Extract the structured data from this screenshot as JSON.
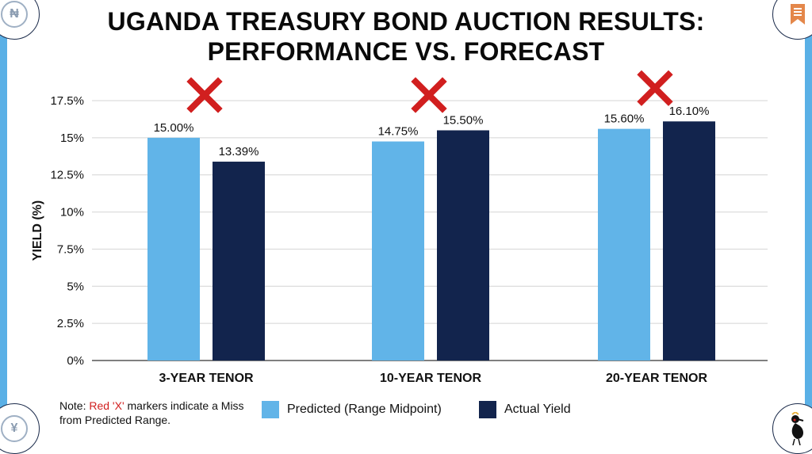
{
  "title_lines": [
    "UGANDA TREASURY BOND AUCTION RESULTS:",
    "PERFORMANCE VS. FORECAST"
  ],
  "corner_icons": {
    "top_left": "naira-coin-icon",
    "top_right": "bookmark-ribbon-icon",
    "bottom_left": "yen-coin-icon",
    "bottom_right": "crested-crane-icon"
  },
  "colors": {
    "predicted": "#61b4e8",
    "actual": "#12244d",
    "miss_marker": "#d11f1f",
    "frame": "#5ab0e6",
    "grid": "#d4d4d4"
  },
  "note": {
    "prefix": "Note: ",
    "highlight": "Red 'X'",
    "suffix": " markers indicate a Miss from Predicted Range."
  },
  "chart_data": {
    "type": "bar",
    "title": "UGANDA TREASURY BOND AUCTION RESULTS: PERFORMANCE VS. FORECAST",
    "xlabel": "",
    "ylabel": "YIELD (%)",
    "ylim": [
      0,
      17.5
    ],
    "yticks": [
      0,
      2.5,
      5,
      7.5,
      10,
      12.5,
      15,
      17.5
    ],
    "ytick_labels": [
      "0%",
      "2.5%",
      "5%",
      "7.5%",
      "10%",
      "12.5%",
      "15%",
      "17.5%"
    ],
    "grid": true,
    "legend_position": "bottom",
    "categories": [
      "3-YEAR TENOR",
      "10-YEAR TENOR",
      "20-YEAR TENOR"
    ],
    "series": [
      {
        "name": "Predicted (Range Midpoint)",
        "values": [
          15.0,
          14.75,
          15.6
        ],
        "labels": [
          "15.00%",
          "14.75%",
          "15.60%"
        ]
      },
      {
        "name": "Actual Yield",
        "values": [
          13.39,
          15.5,
          16.1
        ],
        "labels": [
          "13.39%",
          "15.50%",
          "16.10%"
        ]
      }
    ],
    "miss_markers": [
      true,
      true,
      true
    ]
  }
}
